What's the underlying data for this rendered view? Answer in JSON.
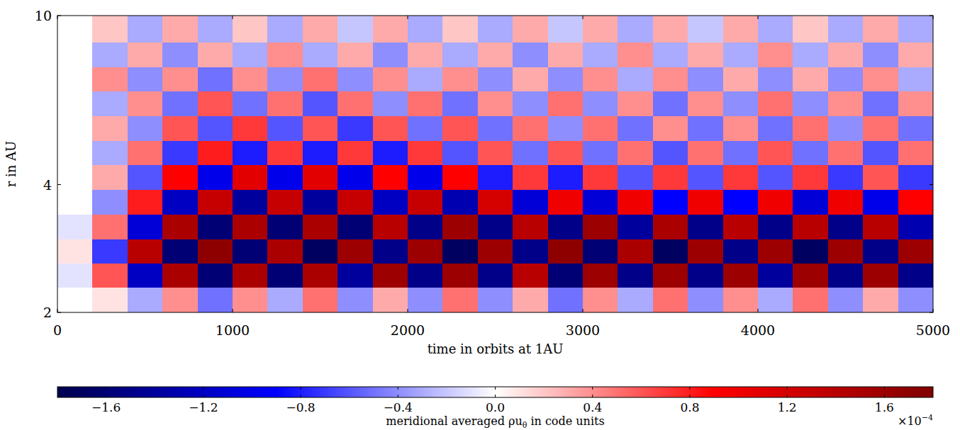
{
  "chart_data": {
    "type": "heatmap",
    "xlabel": "time in orbits at 1AU",
    "ylabel": "r in AU",
    "log": "y",
    "xlim": [
      0,
      5000
    ],
    "ylim": [
      2,
      10
    ],
    "xticks": [
      0,
      1000,
      2000,
      3000,
      4000,
      5000
    ],
    "yticks": [
      2,
      4,
      10
    ],
    "x_bins": [
      0,
      200,
      400,
      600,
      800,
      1000,
      1200,
      1400,
      1600,
      1800,
      2000,
      2200,
      2400,
      2600,
      2800,
      3000,
      3200,
      3400,
      3600,
      3800,
      4000,
      4200,
      4400,
      4600,
      4800,
      5000
    ],
    "y_bins": [
      2,
      2.29,
      2.61,
      2.98,
      3.41,
      3.89,
      4.45,
      5.08,
      5.81,
      6.63,
      7.58,
      8.66,
      10
    ],
    "cells": [
      [
        0,
        0.1,
        -0.3,
        0.4,
        -0.5,
        0.4,
        -0.3,
        0.5,
        -0.4,
        0.3,
        -0.4,
        0.5,
        -0.4,
        0.3,
        -0.5,
        0.4,
        -0.3,
        0.5,
        -0.4,
        0.4,
        -0.3,
        0.5,
        -0.4,
        0.3,
        -0.4
      ],
      [
        -0.1,
        0.6,
        -1.2,
        1.5,
        -1.6,
        1.5,
        -1.6,
        1.5,
        -1.4,
        1.6,
        -1.5,
        1.6,
        -1.5,
        1.4,
        -1.6,
        1.6,
        -1.5,
        1.6,
        -1.5,
        1.6,
        -1.4,
        1.6,
        -1.5,
        1.6,
        -1.5
      ],
      [
        0.1,
        -0.7,
        1.4,
        -1.6,
        1.7,
        -1.6,
        1.5,
        -1.7,
        1.6,
        -1.5,
        1.6,
        -1.7,
        1.6,
        -1.5,
        1.7,
        -1.6,
        1.5,
        -1.7,
        1.6,
        -1.5,
        1.6,
        -1.7,
        1.6,
        -1.5,
        1.6
      ],
      [
        -0.1,
        0.5,
        -1.1,
        1.5,
        -1.6,
        1.5,
        -1.6,
        1.5,
        -1.6,
        1.4,
        -1.5,
        1.6,
        -1.5,
        1.4,
        -1.5,
        1.6,
        -1.4,
        1.5,
        -1.5,
        1.4,
        -1.5,
        1.4,
        -1.5,
        1.4,
        -1.3
      ],
      [
        0,
        -0.4,
        0.8,
        -1.2,
        1.3,
        -1.4,
        1.3,
        -1.4,
        1.3,
        -1.2,
        1.3,
        -1.3,
        1.2,
        -1.1,
        1.0,
        -1.1,
        1.0,
        -0.9,
        1.0,
        -0.9,
        1.0,
        -1.1,
        1.0,
        -1.0,
        0.9
      ],
      [
        0,
        0.3,
        -0.6,
        0.9,
        -1.0,
        1.1,
        -1.0,
        1.1,
        -1.0,
        0.9,
        -1.0,
        0.9,
        -0.8,
        0.7,
        -0.8,
        0.7,
        -0.6,
        0.7,
        -0.6,
        0.7,
        -0.6,
        0.7,
        -0.7,
        0.6,
        -0.7
      ],
      [
        0,
        -0.3,
        0.5,
        -0.7,
        0.8,
        -0.8,
        0.7,
        -0.8,
        0.7,
        -0.8,
        0.7,
        -0.6,
        0.6,
        -0.5,
        0.6,
        -0.5,
        0.5,
        -0.6,
        0.5,
        -0.5,
        0.6,
        -0.5,
        0.5,
        -0.6,
        0.5
      ],
      [
        0,
        0.3,
        -0.4,
        0.6,
        -0.6,
        0.7,
        -0.6,
        0.6,
        -0.7,
        0.6,
        -0.5,
        0.6,
        -0.5,
        0.5,
        -0.4,
        0.5,
        -0.5,
        0.4,
        -0.5,
        0.4,
        -0.5,
        0.5,
        -0.4,
        0.5,
        -0.5
      ],
      [
        0,
        -0.3,
        0.4,
        -0.5,
        0.6,
        -0.5,
        0.5,
        -0.6,
        0.5,
        -0.4,
        0.5,
        -0.5,
        0.4,
        -0.4,
        0.5,
        -0.4,
        0.4,
        -0.5,
        0.4,
        -0.4,
        0.5,
        -0.4,
        0.4,
        -0.5,
        0.4
      ],
      [
        0,
        0.4,
        -0.4,
        0.4,
        -0.5,
        0.4,
        -0.4,
        0.5,
        -0.4,
        0.4,
        -0.3,
        0.4,
        -0.4,
        0.3,
        -0.4,
        0.4,
        -0.3,
        0.4,
        -0.4,
        0.3,
        -0.4,
        0.3,
        -0.4,
        0.4,
        -0.3
      ],
      [
        0,
        -0.3,
        0.3,
        -0.4,
        0.3,
        -0.3,
        0.4,
        -0.3,
        0.3,
        -0.4,
        0.3,
        -0.3,
        0.3,
        -0.4,
        0.3,
        -0.3,
        0.4,
        -0.3,
        0.3,
        -0.3,
        0.4,
        -0.3,
        0.3,
        -0.4,
        0.3
      ],
      [
        0,
        0.2,
        -0.3,
        0.3,
        -0.3,
        0.2,
        -0.3,
        0.3,
        -0.2,
        0.3,
        -0.3,
        0.2,
        -0.3,
        0.3,
        -0.2,
        0.3,
        -0.3,
        0.3,
        -0.2,
        0.3,
        -0.3,
        0.2,
        -0.3,
        0.3,
        -0.3
      ]
    ],
    "colorbar": {
      "label": {
        "main": "meridional averaged ρu",
        "sub": "θ",
        "rest": "in code units"
      },
      "lim": [
        -1.8,
        1.8
      ],
      "ticks": [
        {
          "value": -1.6,
          "label": "−1.6"
        },
        {
          "value": -1.2,
          "label": "−1.2"
        },
        {
          "value": -0.8,
          "label": "−0.8"
        },
        {
          "value": -0.4,
          "label": "−0.4"
        },
        {
          "value": 0,
          "label": "0.0"
        },
        0.4,
        0.8,
        1.2,
        1.6
      ],
      "multiplier": {
        "base": "×10",
        "exp": "−4"
      }
    }
  }
}
